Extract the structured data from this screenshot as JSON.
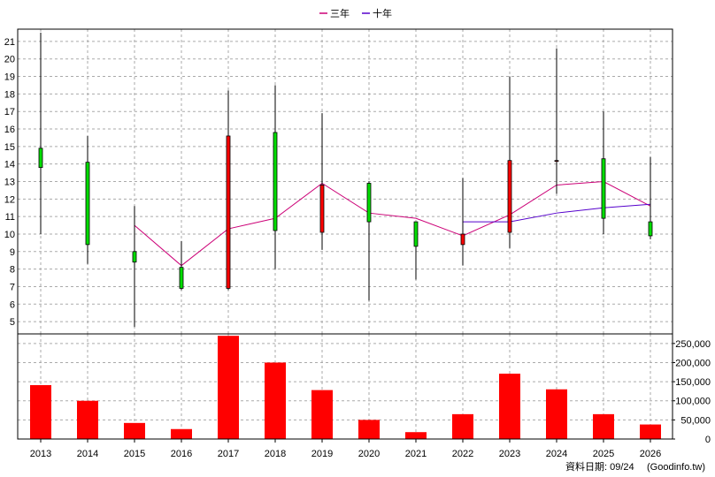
{
  "legend": {
    "items": [
      {
        "label": "三年",
        "color": "#cc0077"
      },
      {
        "label": "十年",
        "color": "#5500cc"
      }
    ]
  },
  "footer": {
    "date_text": "資料日期: 09/24",
    "source_text": "(Goodinfo.tw)"
  },
  "colors": {
    "up": "#ff0000",
    "down": "#00dd00",
    "volume": "#ff0000",
    "grid": "#aaaaaa",
    "wick": "#000000"
  },
  "chart_data": [
    {
      "type": "candlestick",
      "categories": [
        "2013",
        "2014",
        "2015",
        "2016",
        "2017",
        "2018",
        "2019",
        "2020",
        "2021",
        "2022",
        "2023",
        "2024",
        "2025",
        "2026"
      ],
      "ylim": [
        4.3,
        21.7
      ],
      "yticks": [
        5,
        6,
        7,
        8,
        9,
        10,
        11,
        12,
        13,
        14,
        15,
        16,
        17,
        18,
        19,
        20,
        21
      ],
      "candles": [
        {
          "open": 13.8,
          "close": 14.9,
          "high": 21.5,
          "low": 10.0,
          "color": "down"
        },
        {
          "open": 9.4,
          "close": 14.1,
          "high": 15.6,
          "low": 8.3,
          "color": "down"
        },
        {
          "open": 8.4,
          "close": 9.0,
          "high": 11.6,
          "low": 4.7,
          "color": "down"
        },
        {
          "open": 6.9,
          "close": 8.1,
          "high": 9.6,
          "low": 6.8,
          "color": "down"
        },
        {
          "open": 6.9,
          "close": 15.6,
          "high": 18.2,
          "low": 6.8,
          "color": "up"
        },
        {
          "open": 10.2,
          "close": 15.8,
          "high": 18.5,
          "low": 8.0,
          "color": "down"
        },
        {
          "open": 10.1,
          "close": 12.8,
          "high": 16.9,
          "low": 9.1,
          "color": "up"
        },
        {
          "open": 10.7,
          "close": 12.9,
          "high": 13.0,
          "low": 6.2,
          "color": "down"
        },
        {
          "open": 9.3,
          "close": 10.7,
          "high": 10.7,
          "low": 7.4,
          "color": "down"
        },
        {
          "open": 9.4,
          "close": 10.0,
          "high": 13.2,
          "low": 8.2,
          "color": "up"
        },
        {
          "open": 10.1,
          "close": 14.2,
          "high": 19.0,
          "low": 9.2,
          "color": "up"
        },
        {
          "open": 14.2,
          "close": 14.2,
          "high": 20.6,
          "low": 12.3,
          "color": "up"
        },
        {
          "open": 10.9,
          "close": 14.3,
          "high": 17.0,
          "low": 10.0,
          "color": "down"
        },
        {
          "open": 9.9,
          "close": 10.7,
          "high": 14.4,
          "low": 9.7,
          "color": "down"
        }
      ],
      "lines": [
        {
          "name": "三年",
          "color": "#cc0077",
          "start_index": 2,
          "values": [
            10.5,
            8.2,
            10.3,
            10.9,
            12.9,
            11.2,
            10.9,
            9.9,
            11.1,
            12.8,
            13.0,
            11.6
          ]
        },
        {
          "name": "十年",
          "color": "#5500cc",
          "start_index": 9,
          "values": [
            10.7,
            10.7,
            11.2,
            11.5,
            11.7
          ]
        }
      ]
    },
    {
      "type": "bar",
      "categories": [
        "2013",
        "2014",
        "2015",
        "2016",
        "2017",
        "2018",
        "2019",
        "2020",
        "2021",
        "2022",
        "2023",
        "2024",
        "2025",
        "2026"
      ],
      "values": [
        141000,
        100000,
        42000,
        26000,
        270000,
        200000,
        128000,
        50000,
        18000,
        65000,
        171000,
        130000,
        65000,
        38000
      ],
      "ylim": [
        0,
        275000
      ],
      "yticks": [
        0,
        50000,
        100000,
        150000,
        200000,
        250000
      ],
      "ytick_labels": [
        "0",
        "50,000",
        "100,000",
        "150,000",
        "200,000",
        "250,000"
      ]
    }
  ]
}
